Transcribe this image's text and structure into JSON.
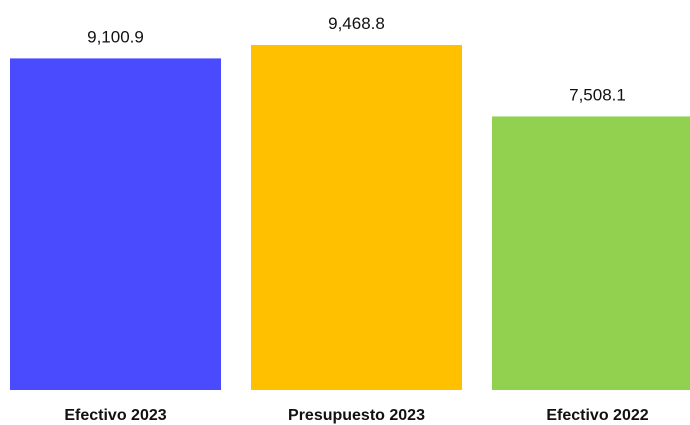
{
  "chart_data": {
    "type": "bar",
    "categories": [
      "Efectivo 2023",
      "Presupuesto 2023",
      "Efectivo 2022"
    ],
    "values": [
      9100.9,
      9468.8,
      7508.1
    ],
    "value_labels": [
      "9,100.9",
      "9,468.8",
      "7,508.1"
    ],
    "colors": [
      "#4a4aff",
      "#ffc000",
      "#92d050"
    ],
    "title": "",
    "xlabel": "",
    "ylabel": "",
    "ylim": [
      0,
      9468.8
    ],
    "grid": false,
    "legend": "none"
  }
}
